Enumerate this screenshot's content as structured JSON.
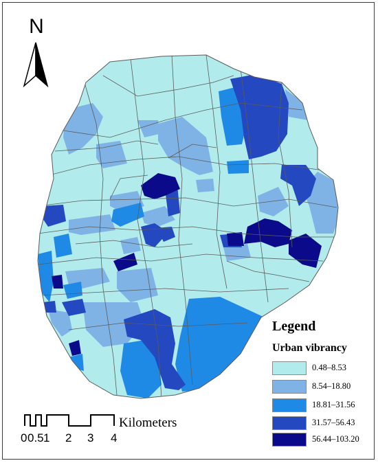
{
  "north_arrow": {
    "label": "N",
    "icon": "north-arrow-icon"
  },
  "legend": {
    "title": "Legend",
    "subtitle": "Urban vibrancy",
    "classes": [
      {
        "label": "0.48–8.53",
        "color": "#b2ebeb"
      },
      {
        "label": "8.54–18.80",
        "color": "#7fb3e6"
      },
      {
        "label": "18.81–31.56",
        "color": "#1f8ae6"
      },
      {
        "label": "31.57–56.43",
        "color": "#2348c0"
      },
      {
        "label": "56.44–103.20",
        "color": "#0a0a8a"
      }
    ]
  },
  "scale_bar": {
    "unit": "Kilometers",
    "ticks": [
      "0",
      "0.5",
      "1",
      "2",
      "3",
      "4"
    ]
  },
  "colors": {
    "boundary": "#5a5a5a",
    "frame": "#3a3a3a",
    "background": "#ffffff"
  }
}
